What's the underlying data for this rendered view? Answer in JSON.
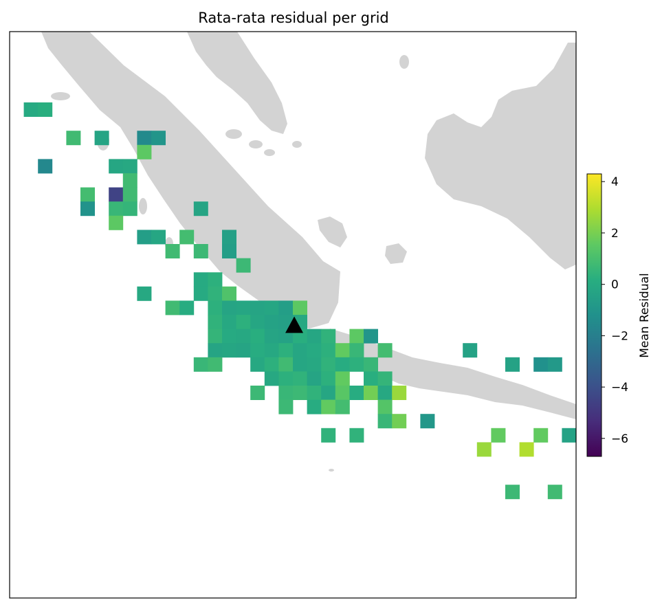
{
  "chart_data": {
    "type": "heatmap",
    "title": "Rata-rata residual per grid",
    "colorbar": {
      "label": "Mean Residual",
      "range": [
        -6.7,
        4.3
      ],
      "ticks": [
        4,
        2,
        0,
        -2,
        -4,
        -6
      ],
      "tick_labels": [
        "4",
        "2",
        "0",
        "−2",
        "−4",
        "−6"
      ],
      "colormap": "viridis"
    },
    "background": {
      "land_color": "#d3d3d3",
      "ocean_color": "#ffffff"
    },
    "marker": {
      "shape": "triangle",
      "color": "#000000",
      "col": 20.1,
      "row": 20.7
    },
    "grid_cells": [
      {
        "col": 1,
        "row": 5,
        "value": 0.0
      },
      {
        "col": 2,
        "row": 5,
        "value": 0.2
      },
      {
        "col": 4,
        "row": 7,
        "value": 0.8
      },
      {
        "col": 6,
        "row": 7,
        "value": -0.3
      },
      {
        "col": 9,
        "row": 7,
        "value": -1.5
      },
      {
        "col": 10,
        "row": 7,
        "value": -1.0
      },
      {
        "col": 9,
        "row": 8,
        "value": 1.5
      },
      {
        "col": 2,
        "row": 9,
        "value": -1.6
      },
      {
        "col": 7,
        "row": 9,
        "value": -0.2
      },
      {
        "col": 8,
        "row": 9,
        "value": -0.1
      },
      {
        "col": 8,
        "row": 10,
        "value": 0.8
      },
      {
        "col": 5,
        "row": 11,
        "value": 0.9
      },
      {
        "col": 7,
        "row": 11,
        "value": -4.5
      },
      {
        "col": 8,
        "row": 11,
        "value": 0.8
      },
      {
        "col": 5,
        "row": 12,
        "value": -1.1
      },
      {
        "col": 7,
        "row": 12,
        "value": 0.6
      },
      {
        "col": 8,
        "row": 12,
        "value": 0.5
      },
      {
        "col": 13,
        "row": 12,
        "value": -0.3
      },
      {
        "col": 7,
        "row": 13,
        "value": 1.5
      },
      {
        "col": 9,
        "row": 14,
        "value": -0.6
      },
      {
        "col": 10,
        "row": 14,
        "value": -0.2
      },
      {
        "col": 12,
        "row": 14,
        "value": 0.9
      },
      {
        "col": 15,
        "row": 14,
        "value": -0.5
      },
      {
        "col": 11,
        "row": 15,
        "value": 0.8
      },
      {
        "col": 13,
        "row": 15,
        "value": 0.7
      },
      {
        "col": 15,
        "row": 15,
        "value": -0.6
      },
      {
        "col": 16,
        "row": 16,
        "value": 0.7
      },
      {
        "col": 13,
        "row": 17,
        "value": 0.0
      },
      {
        "col": 14,
        "row": 17,
        "value": 0.3
      },
      {
        "col": 9,
        "row": 18,
        "value": -0.1
      },
      {
        "col": 13,
        "row": 18,
        "value": 0.0
      },
      {
        "col": 14,
        "row": 18,
        "value": 0.4
      },
      {
        "col": 15,
        "row": 18,
        "value": 1.2
      },
      {
        "col": 11,
        "row": 19,
        "value": 0.8
      },
      {
        "col": 12,
        "row": 19,
        "value": 0.1
      },
      {
        "col": 14,
        "row": 19,
        "value": 0.3
      },
      {
        "col": 15,
        "row": 19,
        "value": -0.3
      },
      {
        "col": 16,
        "row": 19,
        "value": -0.2
      },
      {
        "col": 17,
        "row": 19,
        "value": -0.3
      },
      {
        "col": 18,
        "row": 19,
        "value": -0.2
      },
      {
        "col": 19,
        "row": 19,
        "value": -0.6
      },
      {
        "col": 20,
        "row": 19,
        "value": 1.5
      },
      {
        "col": 14,
        "row": 20,
        "value": 0.4
      },
      {
        "col": 15,
        "row": 20,
        "value": -0.1
      },
      {
        "col": 16,
        "row": 20,
        "value": 0.3
      },
      {
        "col": 17,
        "row": 20,
        "value": -0.2
      },
      {
        "col": 18,
        "row": 20,
        "value": -0.4
      },
      {
        "col": 19,
        "row": 20,
        "value": -0.5
      },
      {
        "col": 20,
        "row": 20,
        "value": -0.1
      },
      {
        "col": 14,
        "row": 21,
        "value": 0.5
      },
      {
        "col": 15,
        "row": 21,
        "value": 0.0
      },
      {
        "col": 16,
        "row": 21,
        "value": -0.1
      },
      {
        "col": 17,
        "row": 21,
        "value": 0.2
      },
      {
        "col": 18,
        "row": 21,
        "value": -0.3
      },
      {
        "col": 19,
        "row": 21,
        "value": -0.4
      },
      {
        "col": 20,
        "row": 21,
        "value": 0.2
      },
      {
        "col": 21,
        "row": 21,
        "value": -0.2
      },
      {
        "col": 22,
        "row": 21,
        "value": 0.4
      },
      {
        "col": 24,
        "row": 21,
        "value": 1.5
      },
      {
        "col": 25,
        "row": 21,
        "value": -1.0
      },
      {
        "col": 14,
        "row": 22,
        "value": -0.3
      },
      {
        "col": 15,
        "row": 22,
        "value": -0.2
      },
      {
        "col": 16,
        "row": 22,
        "value": -0.3
      },
      {
        "col": 17,
        "row": 22,
        "value": 0.1
      },
      {
        "col": 18,
        "row": 22,
        "value": -0.1
      },
      {
        "col": 19,
        "row": 22,
        "value": 0.3
      },
      {
        "col": 20,
        "row": 22,
        "value": -0.2
      },
      {
        "col": 21,
        "row": 22,
        "value": 0.0
      },
      {
        "col": 22,
        "row": 22,
        "value": 0.3
      },
      {
        "col": 23,
        "row": 22,
        "value": 1.6
      },
      {
        "col": 24,
        "row": 22,
        "value": 0.6
      },
      {
        "col": 26,
        "row": 22,
        "value": 0.9
      },
      {
        "col": 32,
        "row": 22,
        "value": -0.4
      },
      {
        "col": 13,
        "row": 23,
        "value": 0.6
      },
      {
        "col": 14,
        "row": 23,
        "value": 0.8
      },
      {
        "col": 17,
        "row": 23,
        "value": -0.1
      },
      {
        "col": 18,
        "row": 23,
        "value": 0.3
      },
      {
        "col": 19,
        "row": 23,
        "value": 0.8
      },
      {
        "col": 20,
        "row": 23,
        "value": -0.2
      },
      {
        "col": 21,
        "row": 23,
        "value": -0.1
      },
      {
        "col": 22,
        "row": 23,
        "value": 0.4
      },
      {
        "col": 23,
        "row": 23,
        "value": 0.1
      },
      {
        "col": 24,
        "row": 23,
        "value": 0.3
      },
      {
        "col": 25,
        "row": 23,
        "value": 0.6
      },
      {
        "col": 35,
        "row": 23,
        "value": -0.4
      },
      {
        "col": 37,
        "row": 23,
        "value": -1.2
      },
      {
        "col": 38,
        "row": 23,
        "value": -0.8
      },
      {
        "col": 18,
        "row": 24,
        "value": -0.1
      },
      {
        "col": 19,
        "row": 24,
        "value": 0.3
      },
      {
        "col": 20,
        "row": 24,
        "value": 0.4
      },
      {
        "col": 21,
        "row": 24,
        "value": -0.3
      },
      {
        "col": 22,
        "row": 24,
        "value": 0.3
      },
      {
        "col": 23,
        "row": 24,
        "value": 1.6
      },
      {
        "col": 25,
        "row": 24,
        "value": 0.2
      },
      {
        "col": 26,
        "row": 24,
        "value": 0.5
      },
      {
        "col": 17,
        "row": 25,
        "value": 0.7
      },
      {
        "col": 19,
        "row": 25,
        "value": 0.6
      },
      {
        "col": 20,
        "row": 25,
        "value": 0.7
      },
      {
        "col": 21,
        "row": 25,
        "value": 0.4
      },
      {
        "col": 22,
        "row": 25,
        "value": -0.2
      },
      {
        "col": 23,
        "row": 25,
        "value": 1.4
      },
      {
        "col": 24,
        "row": 25,
        "value": 0.1
      },
      {
        "col": 25,
        "row": 25,
        "value": 1.9
      },
      {
        "col": 26,
        "row": 25,
        "value": -0.1
      },
      {
        "col": 27,
        "row": 25,
        "value": 2.6
      },
      {
        "col": 19,
        "row": 26,
        "value": 0.7
      },
      {
        "col": 21,
        "row": 26,
        "value": 0.1
      },
      {
        "col": 22,
        "row": 26,
        "value": 1.6
      },
      {
        "col": 23,
        "row": 26,
        "value": 0.9
      },
      {
        "col": 26,
        "row": 26,
        "value": 1.3
      },
      {
        "col": 26,
        "row": 27,
        "value": 0.6
      },
      {
        "col": 27,
        "row": 27,
        "value": 1.9
      },
      {
        "col": 29,
        "row": 27,
        "value": -0.9
      },
      {
        "col": 22,
        "row": 28,
        "value": 0.4
      },
      {
        "col": 24,
        "row": 28,
        "value": 0.4
      },
      {
        "col": 34,
        "row": 28,
        "value": 1.6
      },
      {
        "col": 37,
        "row": 28,
        "value": 1.6
      },
      {
        "col": 39,
        "row": 28,
        "value": -0.4
      },
      {
        "col": 33,
        "row": 29,
        "value": 2.6
      },
      {
        "col": 36,
        "row": 29,
        "value": 3.0
      },
      {
        "col": 40,
        "row": 30,
        "value": 0.7
      },
      {
        "col": 35,
        "row": 32,
        "value": 0.7
      },
      {
        "col": 38,
        "row": 32,
        "value": 0.8
      }
    ]
  }
}
